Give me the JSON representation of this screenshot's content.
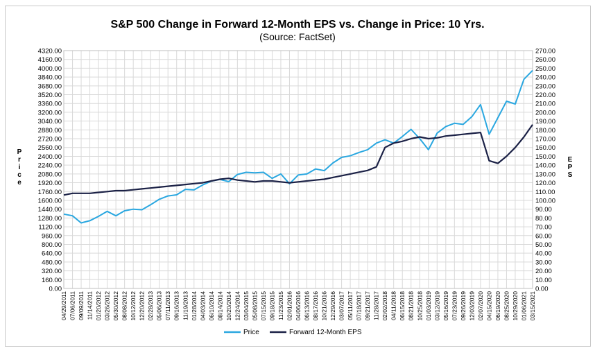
{
  "chart_data": {
    "type": "line",
    "title": "S&P 500 Change in Forward 12-Month EPS vs. Change in Price: 10 Yrs.",
    "subtitle": "(Source: FactSet)",
    "ylabel_left": "Price",
    "ylabel_right": "EPS",
    "ylim_left": [
      0,
      4320
    ],
    "ylim_right": [
      0,
      270
    ],
    "left_ticks": [
      "4320.00",
      "4160.00",
      "4000.00",
      "3840.00",
      "3680.00",
      "3520.00",
      "3360.00",
      "3200.00",
      "3040.00",
      "2880.00",
      "2720.00",
      "2560.00",
      "2400.00",
      "2240.00",
      "2080.00",
      "1920.00",
      "1760.00",
      "1600.00",
      "1440.00",
      "1280.00",
      "1120.00",
      "960.00",
      "800.00",
      "640.00",
      "480.00",
      "320.00",
      "160.00",
      "0.00"
    ],
    "right_ticks": [
      "270.00",
      "260.00",
      "250.00",
      "240.00",
      "230.00",
      "220.00",
      "210.00",
      "200.00",
      "190.00",
      "180.00",
      "170.00",
      "160.00",
      "150.00",
      "140.00",
      "130.00",
      "120.00",
      "110.00",
      "100.00",
      "90.00",
      "80.00",
      "70.00",
      "60.00",
      "50.00",
      "40.00",
      "30.00",
      "20.00",
      "10.00",
      "0.00"
    ],
    "x_ticks": [
      "04/29/2011",
      "07/06/2011",
      "09/09/2011",
      "11/14/2011",
      "01/20/2012",
      "03/26/2012",
      "05/30/2012",
      "08/08/2012",
      "10/12/2012",
      "12/20/2012",
      "02/28/2013",
      "05/06/2013",
      "07/11/2013",
      "09/16/2013",
      "11/19/2013",
      "01/28/2014",
      "04/03/2014",
      "06/10/2014",
      "08/14/2014",
      "10/20/2014",
      "12/24/2014",
      "03/04/2015",
      "05/08/2015",
      "07/15/2015",
      "09/18/2015",
      "11/23/2015",
      "02/01/2016",
      "04/06/2016",
      "06/13/2016",
      "08/17/2016",
      "10/21/2016",
      "12/29/2016",
      "03/07/2017",
      "05/11/2017",
      "07/18/2017",
      "09/21/2017",
      "11/28/2017",
      "02/02/2018",
      "04/11/2018",
      "06/15/2018",
      "08/21/2018",
      "10/25/2018",
      "01/03/2019",
      "03/12/2019",
      "05/16/2019",
      "07/23/2019",
      "09/26/2019",
      "12/03/2019",
      "02/07/2020",
      "04/15/2020",
      "06/19/2020",
      "08/25/2020",
      "10/29/2020",
      "01/06/2021",
      "03/15/2021"
    ],
    "series": [
      {
        "name": "Price",
        "axis": "left",
        "color": "#2aa7e0",
        "x": [
          0,
          1,
          2,
          3,
          4,
          5,
          6,
          7,
          8,
          9,
          10,
          11,
          12,
          13,
          14,
          15,
          16,
          17,
          18,
          19,
          20,
          21,
          22,
          23,
          24,
          25,
          26,
          27,
          28,
          29,
          30,
          31,
          32,
          33,
          34,
          35,
          36,
          37,
          38,
          39,
          40,
          41,
          42,
          43,
          44,
          45,
          46,
          47,
          48,
          49,
          50,
          51,
          52,
          53,
          54
        ],
        "values": [
          1350,
          1320,
          1190,
          1230,
          1310,
          1400,
          1320,
          1410,
          1440,
          1430,
          1520,
          1620,
          1680,
          1700,
          1800,
          1790,
          1880,
          1950,
          1980,
          1940,
          2070,
          2110,
          2100,
          2110,
          2000,
          2080,
          1900,
          2060,
          2080,
          2170,
          2140,
          2280,
          2380,
          2410,
          2470,
          2520,
          2640,
          2700,
          2640,
          2760,
          2890,
          2720,
          2520,
          2820,
          2940,
          3000,
          2980,
          3120,
          3340,
          2800,
          3100,
          3400,
          3350,
          3800,
          3960
        ]
      },
      {
        "name": "Forward 12-Month EPS",
        "axis": "right",
        "color": "#1b2146",
        "x": [
          0,
          1,
          2,
          3,
          4,
          5,
          6,
          7,
          8,
          9,
          10,
          11,
          12,
          13,
          14,
          15,
          16,
          17,
          18,
          19,
          20,
          21,
          22,
          23,
          24,
          25,
          26,
          27,
          28,
          29,
          30,
          31,
          32,
          33,
          34,
          35,
          36,
          37,
          38,
          39,
          40,
          41,
          42,
          43,
          44,
          45,
          46,
          47,
          48,
          49,
          50,
          51,
          52,
          53,
          54
        ],
        "values": [
          106,
          108,
          108,
          108,
          109,
          110,
          111,
          111,
          112,
          113,
          114,
          115,
          116,
          117,
          118,
          119,
          120,
          122,
          124,
          125,
          123,
          122,
          121,
          122,
          122,
          121,
          120,
          121,
          122,
          123,
          124,
          126,
          128,
          130,
          132,
          134,
          138,
          160,
          165,
          167,
          170,
          172,
          170,
          171,
          173,
          174,
          175,
          176,
          177,
          145,
          142,
          150,
          160,
          172,
          186
        ]
      }
    ],
    "legend": [
      "Price",
      "Forward 12-Month EPS"
    ]
  }
}
